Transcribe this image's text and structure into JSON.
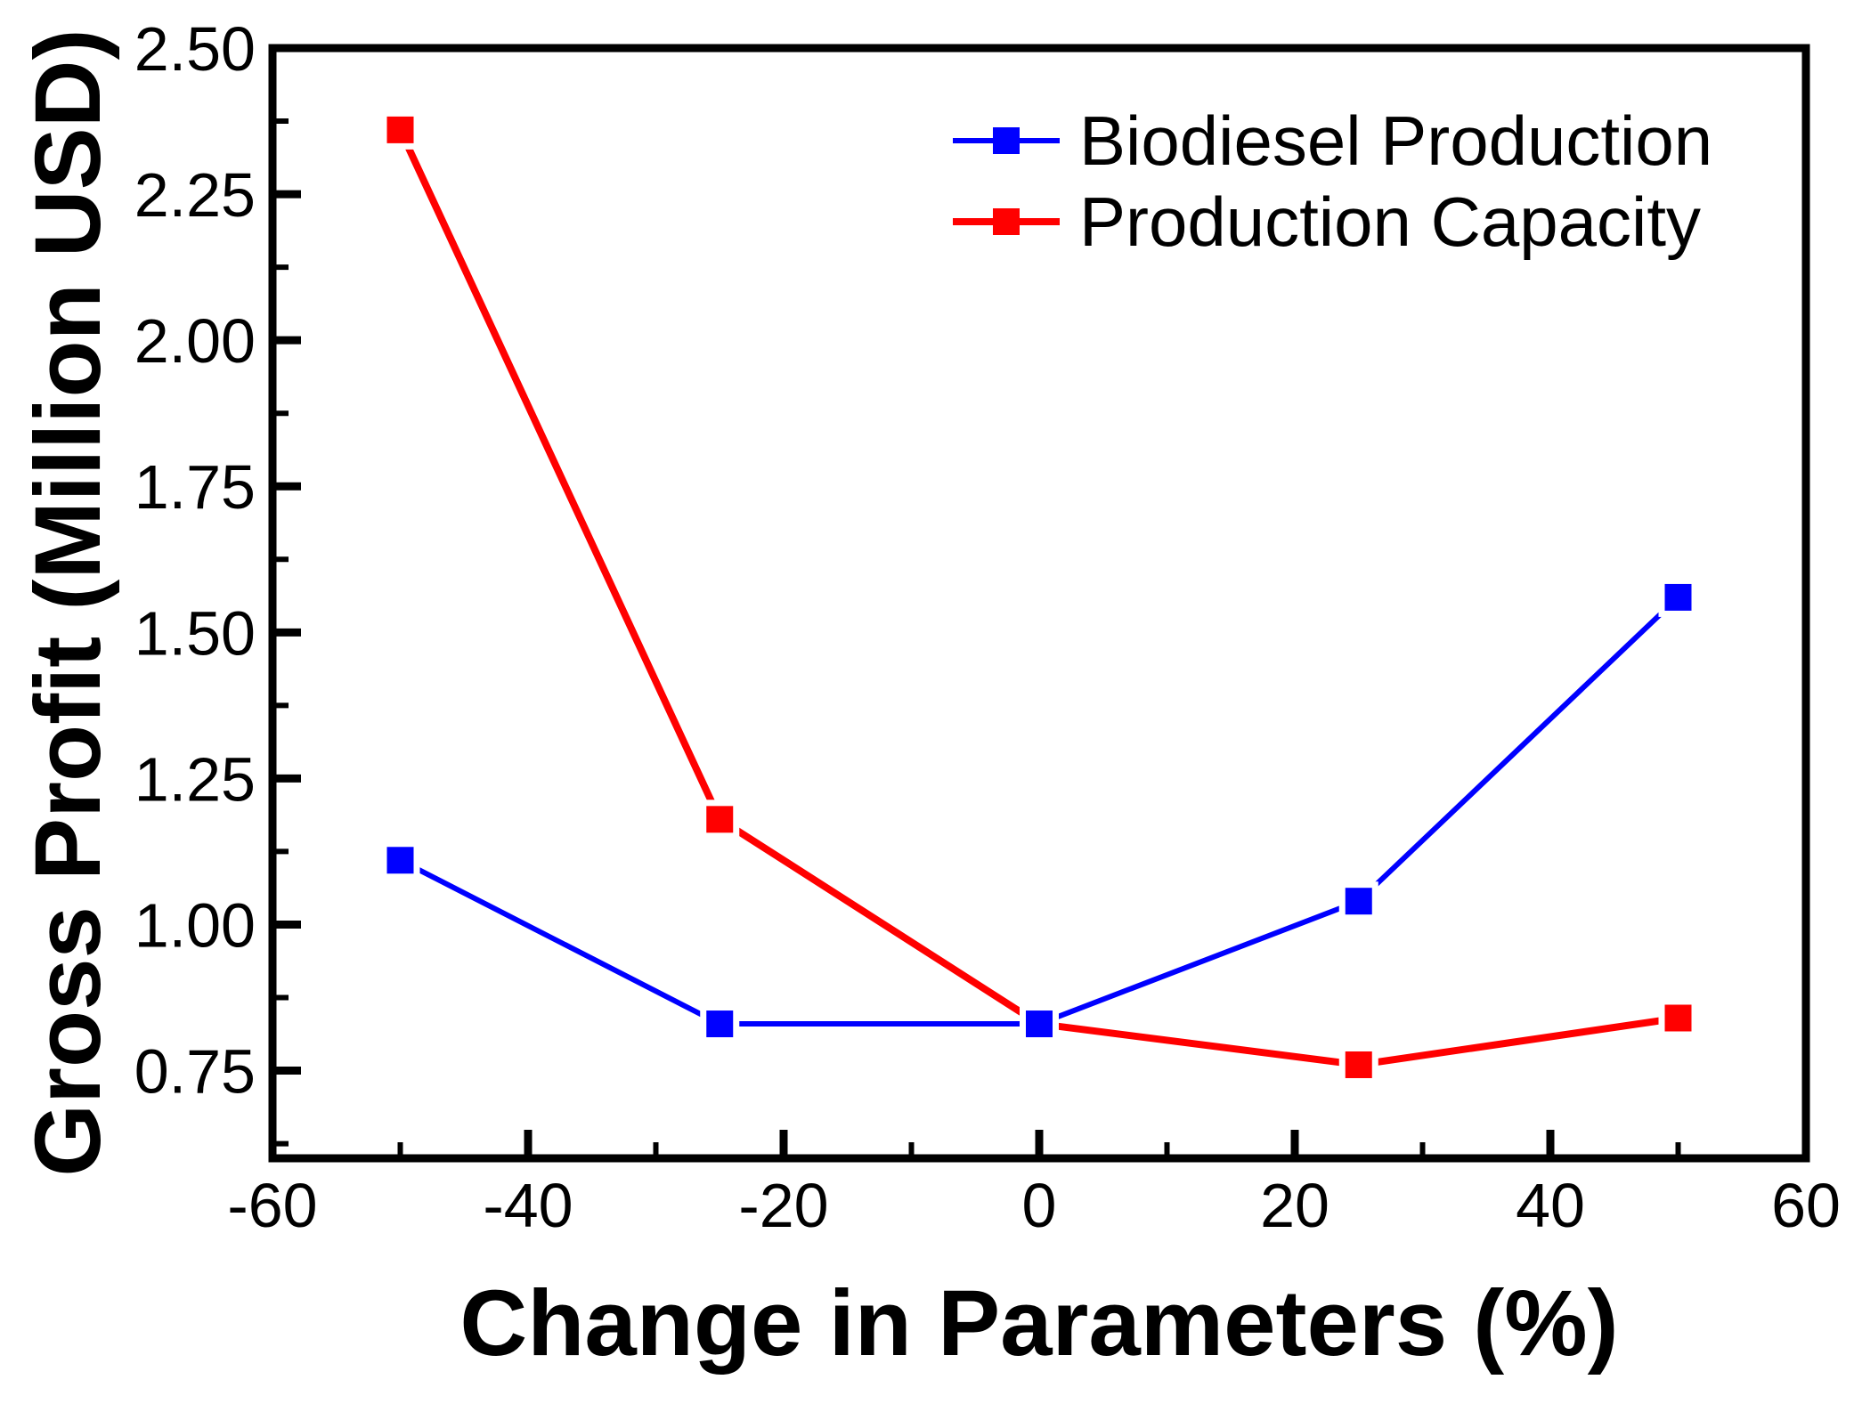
{
  "figure": {
    "background": "#FFFFFF",
    "frame_color": "#000000",
    "text_color": "#000000"
  },
  "axes": {
    "x": {
      "label": "Change in Parameters (%)",
      "min": -60,
      "max": 60,
      "major_ticks": [
        -60,
        -40,
        -20,
        0,
        20,
        40,
        60
      ],
      "tick_labels": [
        "-60",
        "-40",
        "-20",
        "0",
        "20",
        "40",
        "60"
      ],
      "minor_ticks": [
        -50,
        -30,
        -10,
        10,
        30,
        50
      ]
    },
    "y": {
      "label": "Gross Profit (Million USD)",
      "min": 0.6,
      "max": 2.5,
      "major_ticks": [
        0.75,
        1.0,
        1.25,
        1.5,
        1.75,
        2.0,
        2.25,
        2.5
      ],
      "tick_labels": [
        "0.75",
        "1.00",
        "1.25",
        "1.50",
        "1.75",
        "2.00",
        "2.25",
        "2.50"
      ],
      "minor_ticks": [
        0.625,
        0.875,
        1.125,
        1.375,
        1.625,
        1.875,
        2.125,
        2.375
      ]
    }
  },
  "chart_data": {
    "type": "line",
    "title": "",
    "xlabel": "Change in Parameters (%)",
    "ylabel": "Gross Profit (Million USD)",
    "xlim": [
      -60,
      60
    ],
    "ylim": [
      0.6,
      2.5
    ],
    "grid": false,
    "legend_position": "top-right-inside",
    "x": [
      -50,
      -25,
      0,
      25,
      50
    ],
    "series": [
      {
        "name": "Production Capacity",
        "color": "#FF0000",
        "marker": "square",
        "values": [
          2.36,
          1.18,
          0.83,
          0.76,
          0.84
        ]
      },
      {
        "name": "Biodiesel Production",
        "color": "#0000FF",
        "marker": "square",
        "values": [
          1.11,
          0.83,
          0.83,
          1.04,
          1.56
        ]
      }
    ]
  },
  "legend": {
    "items": [
      {
        "label": "Biodiesel Production",
        "color": "#0000FF"
      },
      {
        "label": "Production Capacity",
        "color": "#FF0000"
      }
    ]
  }
}
